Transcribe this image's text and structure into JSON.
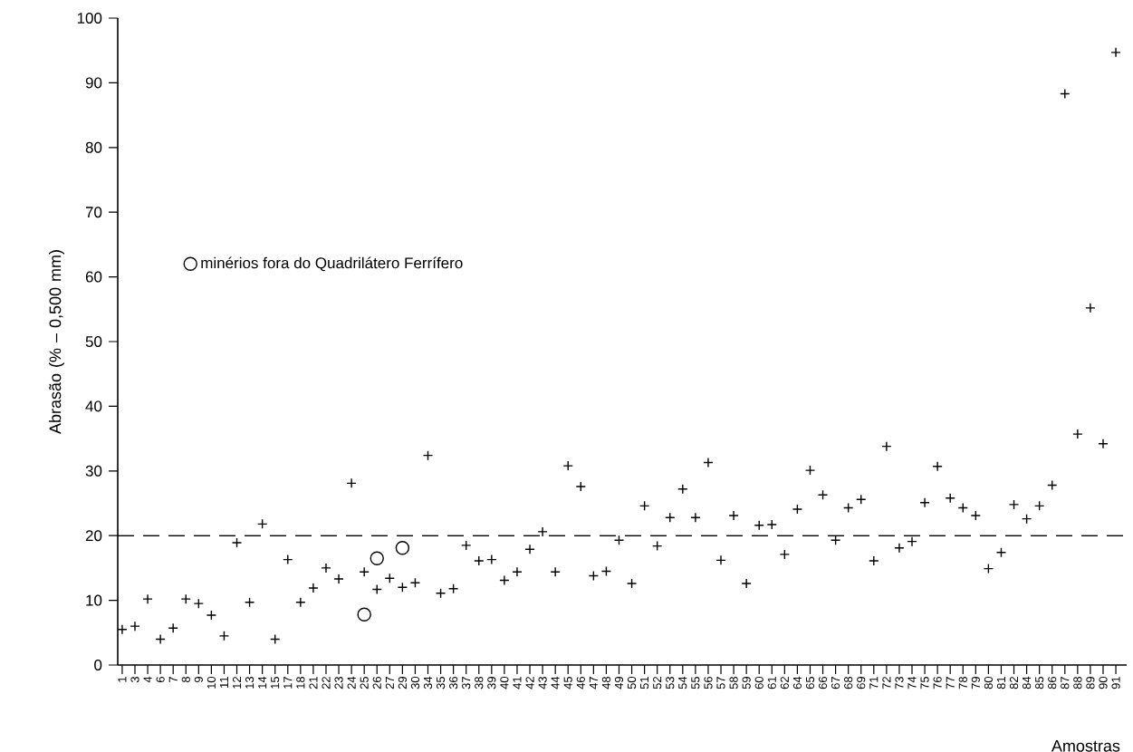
{
  "chart_data": {
    "type": "scatter",
    "xlabel": "Amostras",
    "ylabel": "Abrasão (% – 0,500 mm)",
    "categories": [
      "1",
      "3",
      "4",
      "6",
      "7",
      "8",
      "9",
      "10",
      "11",
      "12",
      "13",
      "14",
      "15",
      "17",
      "18",
      "21",
      "22",
      "23",
      "24",
      "25",
      "26",
      "27",
      "29",
      "30",
      "34",
      "35",
      "36",
      "37",
      "38",
      "39",
      "40",
      "41",
      "42",
      "43",
      "44",
      "45",
      "46",
      "47",
      "48",
      "49",
      "50",
      "51",
      "52",
      "53",
      "54",
      "55",
      "56",
      "57",
      "58",
      "59",
      "60",
      "61",
      "62",
      "64",
      "65",
      "66",
      "67",
      "68",
      "69",
      "71",
      "72",
      "73",
      "74",
      "75",
      "76",
      "77",
      "78",
      "79",
      "80",
      "81",
      "82",
      "84",
      "85",
      "86",
      "87",
      "88",
      "89",
      "90",
      "91"
    ],
    "series": [
      {
        "color": "#000000",
        "marker": "cross",
        "values": [
          5.5,
          6,
          10.2,
          4,
          5.7,
          10.2,
          9.5,
          7.7,
          4.5,
          18.9,
          9.7,
          21.8,
          4,
          16.3,
          9.7,
          11.9,
          15,
          13.3,
          28.1,
          14.4,
          11.7,
          13.4,
          12,
          12.7,
          32.4,
          11.1,
          11.8,
          18.5,
          16.1,
          16.3,
          13.1,
          14.4,
          17.9,
          20.6,
          14.4,
          30.8,
          27.6,
          13.8,
          14.5,
          19.3,
          12.6,
          24.6,
          18.4,
          22.8,
          27.2,
          22.8,
          31.3,
          16.2,
          23.1,
          12.6,
          21.6,
          21.7,
          17.1,
          24.1,
          30.1,
          26.3,
          19.3,
          24.3,
          25.6,
          16.1,
          33.8,
          18.1,
          19.1,
          25.1,
          30.7,
          25.8,
          24.3,
          23.1,
          14.9,
          17.4,
          24.8,
          22.6,
          24.6,
          27.8,
          88.3,
          35.7,
          55.2,
          34.2,
          94.7
        ]
      },
      {
        "name": "minérios fora do Quadrilátero Ferrífero",
        "color": "#000000",
        "marker": "circle",
        "values": [
          null,
          null,
          null,
          null,
          null,
          null,
          null,
          null,
          null,
          null,
          null,
          null,
          null,
          null,
          null,
          null,
          null,
          null,
          null,
          7.8,
          16.5,
          null,
          18.1,
          null,
          null,
          null,
          null,
          null,
          null,
          null,
          null,
          null,
          null,
          null,
          null,
          null,
          null,
          null,
          null,
          null,
          null,
          null,
          null,
          null,
          null,
          null,
          null,
          null,
          null,
          null,
          null,
          null,
          null,
          null,
          null,
          null,
          null,
          null,
          null,
          null,
          null,
          null,
          null,
          null,
          null,
          null,
          null,
          null,
          null,
          null,
          null,
          null,
          null,
          null,
          null,
          null,
          null,
          null,
          null
        ]
      }
    ],
    "ylim": [
      0,
      100
    ],
    "yticks": [
      0,
      10,
      20,
      30,
      40,
      50,
      60,
      70,
      80,
      90,
      100
    ],
    "ref_lines": [
      {
        "axis": "y",
        "value": 20,
        "line_style": "dashed",
        "color": "#000000"
      }
    ],
    "legend": "left",
    "grid": false
  }
}
